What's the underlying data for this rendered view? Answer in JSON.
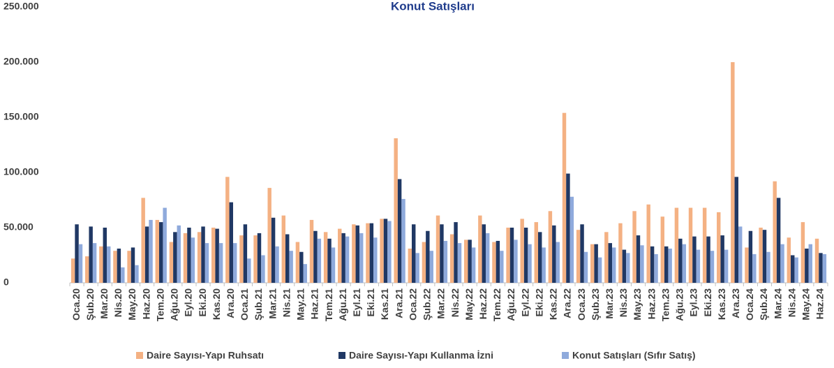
{
  "chart_data": {
    "type": "bar",
    "title": "Konut Satışları",
    "categories": [
      "Oca.20",
      "Şub.20",
      "Mar.20",
      "Nis.20",
      "May.20",
      "Haz.20",
      "Tem.20",
      "Ağu.20",
      "Eyl.20",
      "Eki.20",
      "Kas.20",
      "Ara.20",
      "Oca.21",
      "Şub.21",
      "Mar.21",
      "Nis.21",
      "May.21",
      "Haz.21",
      "Tem.21",
      "Ağu.21",
      "Eyl.21",
      "Eki.21",
      "Kas.21",
      "Ara.21",
      "Oca.22",
      "Şub.22",
      "Mar.22",
      "Nis.22",
      "May.22",
      "Haz.22",
      "Tem.22",
      "Ağu.22",
      "Eyl.22",
      "Eki.22",
      "Kas.22",
      "Ara.22",
      "Oca.23",
      "Şub.23",
      "Mar.23",
      "Nis.23",
      "May.23",
      "Haz.23",
      "Tem.23",
      "Ağu.23",
      "Eyl.23",
      "Eki.23",
      "Kas.23",
      "Ara.23",
      "Oca.24",
      "Şub.24",
      "Mar.24",
      "Nis.24",
      "May.24",
      "Haz.24"
    ],
    "series": [
      {
        "name": "Daire Sayısı-Yapı Ruhsatı",
        "color": "#f4b183",
        "values": [
          22000,
          24000,
          33000,
          29000,
          29000,
          77000,
          57000,
          37000,
          45000,
          46000,
          50000,
          96000,
          43000,
          43000,
          86000,
          61000,
          37000,
          57000,
          46000,
          49000,
          53000,
          54000,
          58000,
          131000,
          31000,
          37000,
          61000,
          44000,
          39000,
          61000,
          37000,
          50000,
          58000,
          55000,
          65000,
          154000,
          48000,
          35000,
          46000,
          54000,
          65000,
          71000,
          60000,
          68000,
          68000,
          68000,
          64000,
          200000,
          32000,
          50000,
          92000,
          41000,
          55000,
          40000
        ]
      },
      {
        "name": "Daire Sayısı-Yapı Kullanma İzni",
        "color": "#203864",
        "values": [
          53000,
          51000,
          50000,
          31000,
          32000,
          51000,
          55000,
          46000,
          50000,
          51000,
          49000,
          73000,
          53000,
          45000,
          59000,
          44000,
          28000,
          47000,
          40000,
          45000,
          52000,
          54000,
          58000,
          94000,
          53000,
          47000,
          53000,
          55000,
          39000,
          53000,
          38000,
          50000,
          50000,
          46000,
          52000,
          99000,
          53000,
          35000,
          36000,
          30000,
          43000,
          33000,
          33000,
          40000,
          42000,
          42000,
          43000,
          96000,
          47000,
          48000,
          77000,
          25000,
          31000,
          27000
        ]
      },
      {
        "name": "Konut Satışları (Sıfır Satış)",
        "color": "#8faadc",
        "values": [
          35000,
          36000,
          33000,
          14000,
          16000,
          57000,
          68000,
          52000,
          41000,
          36000,
          36000,
          36000,
          22000,
          25000,
          33000,
          29000,
          17000,
          40000,
          32000,
          42000,
          45000,
          41000,
          56000,
          76000,
          27000,
          29000,
          38000,
          36000,
          32000,
          45000,
          29000,
          39000,
          35000,
          32000,
          37000,
          78000,
          28000,
          23000,
          32000,
          27000,
          34000,
          26000,
          31000,
          35000,
          30000,
          29000,
          30000,
          51000,
          26000,
          28000,
          35000,
          23000,
          35000,
          26000
        ]
      }
    ],
    "ylim": [
      0,
      250000
    ],
    "yticks": [
      0,
      {
        "value": 50000,
        "label": "50.000"
      },
      {
        "value": 100000,
        "label": "100.000"
      },
      {
        "value": 150000,
        "label": "150.000"
      },
      {
        "value": 200000,
        "label": "200.000"
      },
      {
        "value": 250000,
        "label": "250.000"
      }
    ],
    "grid": false,
    "legend": "bottom"
  }
}
